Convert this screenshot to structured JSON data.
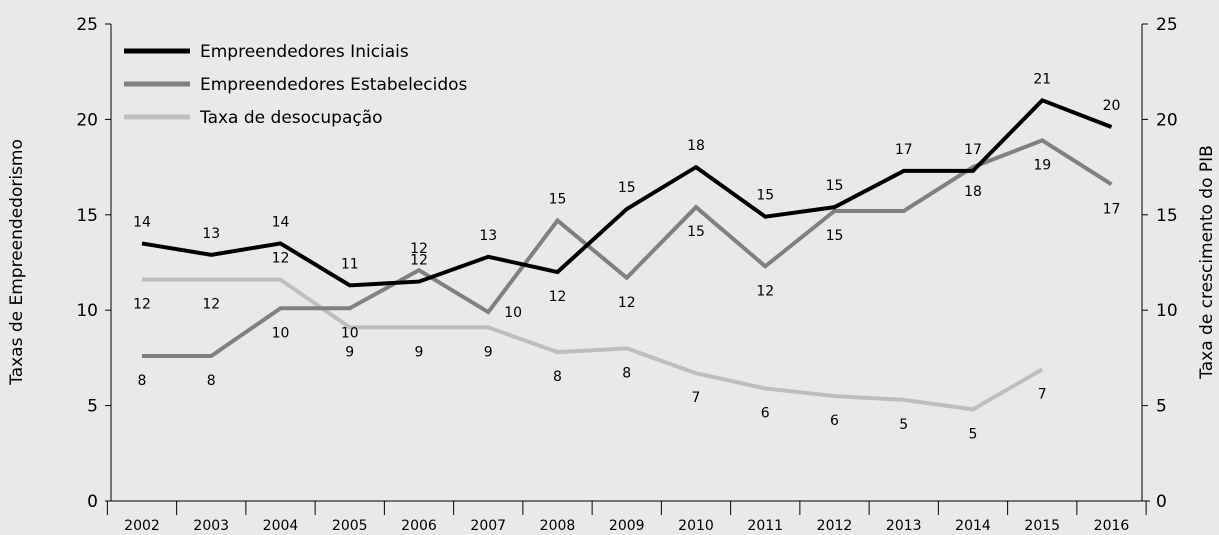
{
  "chart_data": {
    "type": "line",
    "categories": [
      "2002",
      "2003",
      "2004",
      "2005",
      "2006",
      "2007",
      "2008",
      "2009",
      "2010",
      "2011",
      "2012",
      "2013",
      "2014",
      "2015",
      "2016"
    ],
    "ylabel_left": "Taxas de Empreendedorismo",
    "ylabel_right": "Taxa de crescimento do PIB",
    "ylim": [
      0,
      25
    ],
    "yticks": [
      0,
      5,
      10,
      15,
      20,
      25
    ],
    "grid": false,
    "legend_position": "top-left",
    "series": [
      {
        "name": "Empreendedores Iniciais",
        "color": "#000000",
        "values": [
          13.5,
          12.9,
          13.5,
          11.3,
          11.5,
          12.8,
          12.0,
          15.3,
          17.5,
          14.9,
          15.4,
          17.3,
          17.3,
          21.0,
          19.6
        ],
        "labels": [
          "14",
          "13",
          "14",
          "11",
          "12",
          "13",
          "12",
          "15",
          "18",
          "15",
          "15",
          "17",
          "17",
          "21",
          "20"
        ],
        "label_pos": [
          "above",
          "above",
          "above",
          "above",
          "above",
          "above",
          "below",
          "above",
          "above",
          "above",
          "above",
          "above",
          "above",
          "above",
          "above"
        ]
      },
      {
        "name": "Empreendedores Estabelecidos",
        "color": "#808080",
        "values": [
          7.6,
          7.6,
          10.1,
          10.1,
          12.1,
          9.9,
          14.7,
          11.7,
          15.4,
          12.3,
          15.2,
          15.2,
          17.5,
          18.9,
          16.6
        ],
        "labels": [
          "8",
          "8",
          "10",
          "10",
          "12",
          "10",
          "15",
          "12",
          "15",
          "12",
          "15",
          "",
          "18",
          "19",
          "17"
        ],
        "label_pos": [
          "below",
          "below",
          "below",
          "below",
          "above",
          "right",
          "above",
          "below",
          "below",
          "below",
          "below",
          "below",
          "below",
          "below",
          "below"
        ]
      },
      {
        "name": "Taxa de desocupação",
        "color": "#bebebe",
        "values": [
          11.6,
          11.6,
          11.6,
          9.1,
          9.1,
          9.1,
          7.8,
          8.0,
          6.7,
          5.9,
          5.5,
          5.3,
          4.8,
          6.9,
          null
        ],
        "labels": [
          "12",
          "12",
          "12",
          "9",
          "9",
          "9",
          "8",
          "8",
          "7",
          "6",
          "6",
          "5",
          "5",
          "7",
          ""
        ],
        "label_pos": [
          "below",
          "below",
          "above",
          "below",
          "below",
          "below",
          "below",
          "below",
          "below",
          "below",
          "below",
          "below",
          "below",
          "below",
          "below"
        ]
      }
    ]
  }
}
